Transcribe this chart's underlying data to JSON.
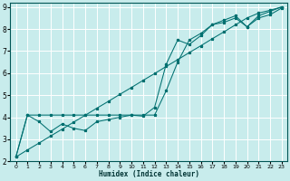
{
  "xlabel": "Humidex (Indice chaleur)",
  "bg_color": "#c8ecec",
  "grid_color": "#ffffff",
  "line_color1": "#007070",
  "line_color2": "#007070",
  "line_color3": "#007070",
  "xlim": [
    -0.5,
    23.5
  ],
  "ylim": [
    2,
    9.2
  ],
  "xticks": [
    0,
    1,
    2,
    3,
    4,
    5,
    6,
    7,
    8,
    9,
    10,
    11,
    12,
    13,
    14,
    15,
    16,
    17,
    18,
    19,
    20,
    21,
    22,
    23
  ],
  "yticks": [
    2,
    3,
    4,
    5,
    6,
    7,
    8,
    9
  ],
  "line1_x": [
    0,
    1,
    2,
    3,
    4,
    5,
    6,
    7,
    8,
    9,
    10,
    11,
    12,
    13,
    14,
    15,
    16,
    17,
    18,
    19,
    20,
    21,
    22,
    23
  ],
  "line1_y": [
    2.2,
    4.1,
    3.8,
    3.35,
    3.7,
    3.5,
    3.4,
    3.8,
    3.9,
    4.0,
    4.1,
    4.05,
    4.45,
    6.4,
    7.5,
    7.3,
    7.7,
    8.2,
    8.3,
    8.5,
    8.1,
    8.5,
    8.65,
    8.95
  ],
  "line2_x": [
    0,
    1,
    2,
    3,
    4,
    5,
    6,
    7,
    8,
    9,
    10,
    11,
    12,
    13,
    14,
    15,
    16,
    17,
    18,
    19,
    20,
    21,
    22,
    23
  ],
  "line2_y": [
    2.2,
    2.52,
    2.83,
    3.15,
    3.46,
    3.78,
    4.09,
    4.41,
    4.72,
    5.04,
    5.35,
    5.67,
    5.98,
    6.3,
    6.61,
    6.93,
    7.24,
    7.56,
    7.87,
    8.19,
    8.5,
    8.72,
    8.85,
    9.0
  ],
  "line3_x": [
    0,
    1,
    2,
    3,
    4,
    5,
    6,
    7,
    8,
    9,
    10,
    11,
    12,
    13,
    14,
    15,
    16,
    17,
    18,
    19,
    20,
    21,
    22,
    23
  ],
  "line3_y": [
    2.2,
    4.1,
    4.1,
    4.1,
    4.1,
    4.1,
    4.1,
    4.1,
    4.1,
    4.1,
    4.1,
    4.1,
    4.1,
    5.2,
    6.5,
    7.5,
    7.8,
    8.2,
    8.4,
    8.6,
    8.1,
    8.6,
    8.8,
    9.0
  ]
}
